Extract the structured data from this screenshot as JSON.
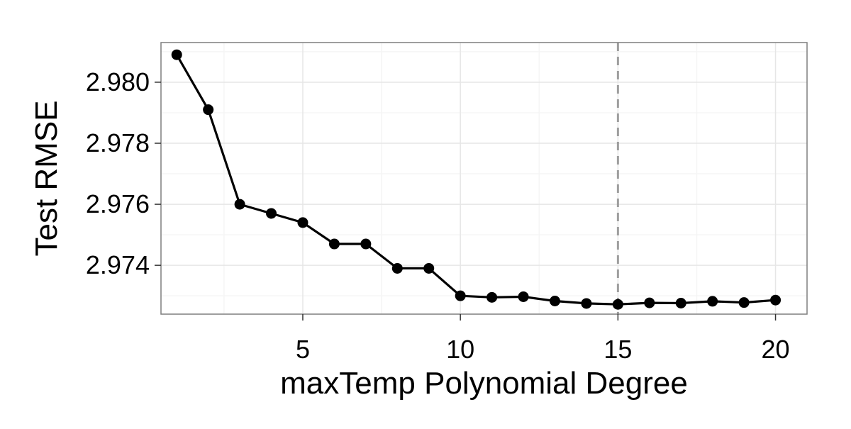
{
  "chart_data": {
    "type": "line",
    "title": "",
    "xlabel": "maxTemp Polynomial Degree",
    "ylabel": "Test RMSE",
    "x": [
      1,
      2,
      3,
      4,
      5,
      6,
      7,
      8,
      9,
      10,
      11,
      12,
      13,
      14,
      15,
      16,
      17,
      18,
      19,
      20
    ],
    "series": [
      {
        "values": [
          2.9809,
          2.9791,
          2.976,
          2.9757,
          2.9754,
          2.9747,
          2.9747,
          2.9739,
          2.9739,
          2.973,
          2.97295,
          2.97297,
          2.97283,
          2.97275,
          2.97272,
          2.97277,
          2.97276,
          2.97282,
          2.97278,
          2.97286
        ],
        "color": "#000000"
      }
    ],
    "xlim": [
      0.5,
      21
    ],
    "ylim": [
      2.9724,
      2.9813
    ],
    "x_ticks": [
      5,
      10,
      15,
      20
    ],
    "x_tick_labels": [
      "5",
      "10",
      "15",
      "20"
    ],
    "y_ticks": [
      2.974,
      2.976,
      2.978,
      2.98
    ],
    "y_tick_labels": [
      "2.974",
      "2.976",
      "2.978",
      "2.980"
    ],
    "x_minor_ticks": [
      2.5,
      7.5,
      12.5,
      17.5
    ],
    "y_minor_ticks": [
      2.973,
      2.975,
      2.977,
      2.979,
      2.981
    ],
    "vline": {
      "x": 15,
      "style": "dashed",
      "color": "#9e9e9e"
    },
    "grid": true,
    "legend": "none",
    "colors": {
      "panel_border": "#7f7f7f",
      "grid_major": "#e6e6e6",
      "grid_minor": "#f5f5f5",
      "line": "#000000",
      "points": "#000000"
    }
  }
}
